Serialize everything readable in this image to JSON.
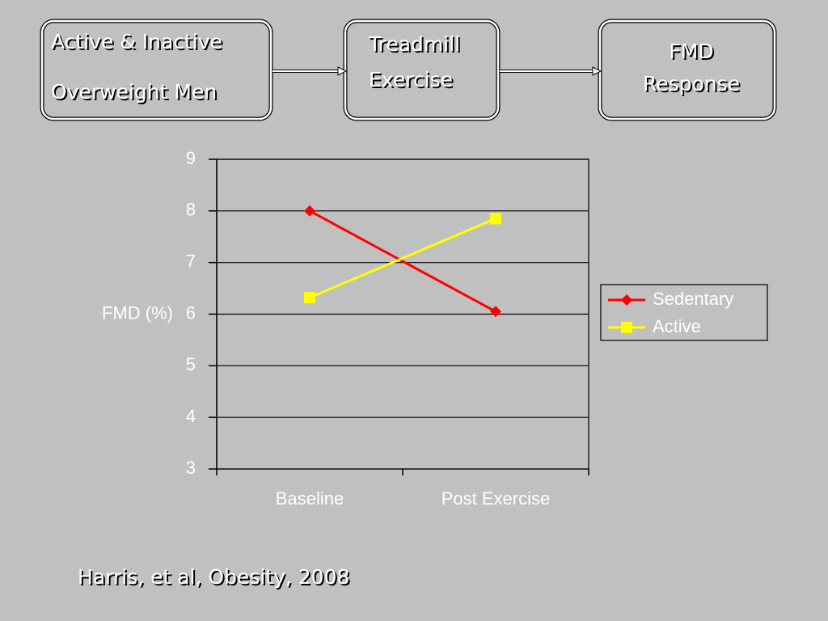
{
  "flow": {
    "nodes": [
      {
        "lines": [
          "Active & Inactive",
          "Overweight Men"
        ]
      },
      {
        "lines": [
          "Treadmill",
          "Exercise"
        ]
      },
      {
        "lines": [
          "FMD",
          "Response"
        ]
      }
    ]
  },
  "chart_data": {
    "type": "line",
    "ylabel": "FMD (%)",
    "categories": [
      "Baseline",
      "Post Exercise"
    ],
    "series": [
      {
        "name": "Sedentary",
        "color": "#ff0000",
        "marker": "diamond",
        "values": [
          8.0,
          6.05
        ]
      },
      {
        "name": "Active",
        "color": "#ffff00",
        "marker": "square",
        "values": [
          6.32,
          7.85
        ]
      }
    ],
    "ylim": [
      3,
      9
    ],
    "yticks": [
      3,
      4,
      5,
      6,
      7,
      8,
      9
    ],
    "grid": true,
    "legend": "right"
  },
  "citation": "Harris, et al, Obesity, 2008"
}
